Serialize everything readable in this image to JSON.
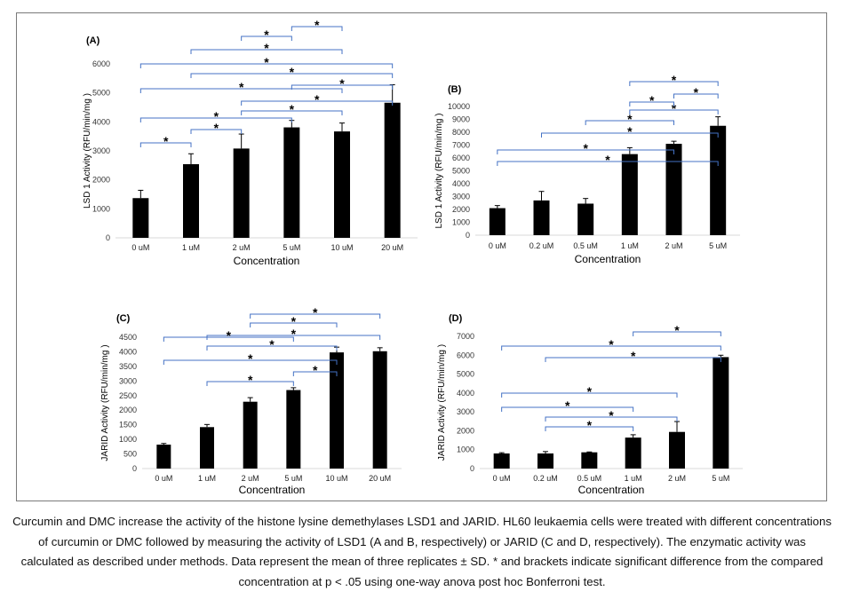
{
  "chart_data": [
    {
      "type": "bar",
      "panel": "(A)",
      "categories": [
        "0 uM",
        "1 uM",
        "2 uM",
        "5 uM",
        "10 uM",
        "20 uM"
      ],
      "values": [
        1370,
        2540,
        3080,
        3810,
        3670,
        4660
      ],
      "errors": [
        270,
        360,
        500,
        240,
        290,
        620
      ],
      "xlabel": "Concentration",
      "ylabel": "LSD 1 Activity (RFU/min/mg )",
      "ylim": [
        0,
        6000
      ],
      "yticks": [
        0,
        1000,
        2000,
        3000,
        4000,
        5000,
        6000
      ],
      "significance": [
        {
          "from": "0 uM",
          "to": "1 uM",
          "mark": "*"
        },
        {
          "from": "1 uM",
          "to": "2 uM",
          "mark": "*"
        },
        {
          "from": "0 uM",
          "to": "5 uM",
          "mark": "*"
        },
        {
          "from": "2 uM",
          "to": "10 uM",
          "mark": "*"
        },
        {
          "from": "2 uM",
          "to": "20 uM",
          "mark": "*"
        },
        {
          "from": "0 uM",
          "to": "10 uM",
          "mark": "*"
        },
        {
          "from": "1 uM",
          "to": "20 uM",
          "mark": "*"
        },
        {
          "from": "0 uM",
          "to": "20 uM",
          "mark": "*"
        },
        {
          "from": "1 uM",
          "to": "10 uM",
          "mark": "*"
        },
        {
          "from": "2 uM",
          "to": "5 uM",
          "mark": "*"
        },
        {
          "from": "5 uM",
          "to": "20 uM",
          "mark": "*"
        },
        {
          "from": "5 uM",
          "to": "10 uM",
          "mark": "*"
        }
      ]
    },
    {
      "type": "bar",
      "panel": "(B)",
      "categories": [
        "0 uM",
        "0.2 uM",
        "0.5 uM",
        "1 uM",
        "2 uM",
        "5 uM"
      ],
      "values": [
        2100,
        2700,
        2450,
        6300,
        7100,
        8500
      ],
      "errors": [
        200,
        700,
        400,
        500,
        200,
        700
      ],
      "xlabel": "Concentration",
      "ylabel": "LSD 1 Activity (RFU/min/mg )",
      "ylim": [
        0,
        10000
      ],
      "yticks": [
        0,
        1000,
        2000,
        3000,
        4000,
        5000,
        6000,
        7000,
        8000,
        9000,
        10000
      ],
      "significance": [
        {
          "from": "0 uM",
          "to": "5 uM",
          "mark": "*"
        },
        {
          "from": "0 uM",
          "to": "2 uM",
          "mark": "*"
        },
        {
          "from": "0.2 uM",
          "to": "5 uM",
          "mark": "*"
        },
        {
          "from": "0.5 uM",
          "to": "2 uM",
          "mark": "*"
        },
        {
          "from": "1 uM",
          "to": "5 uM",
          "mark": "*"
        },
        {
          "from": "1 uM",
          "to": "2 uM",
          "mark": "*"
        },
        {
          "from": "2 uM",
          "to": "5 uM",
          "mark": "*"
        },
        {
          "from": "1 uM",
          "to": "5 uM",
          "mark": "*"
        }
      ]
    },
    {
      "type": "bar",
      "panel": "(C)",
      "categories": [
        "0 uM",
        "1 uM",
        "2 uM",
        "5 uM",
        "10 uM",
        "20 uM"
      ],
      "values": [
        820,
        1420,
        2290,
        2690,
        3980,
        4020
      ],
      "errors": [
        40,
        90,
        140,
        80,
        180,
        120
      ],
      "xlabel": "Concentration",
      "ylabel": "JARID Activity (RFU/min/mg )",
      "ylim": [
        0,
        4500
      ],
      "yticks": [
        0,
        500,
        1000,
        1500,
        2000,
        2500,
        3000,
        3500,
        4000,
        4500
      ],
      "significance": [
        {
          "from": "2 uM",
          "to": "20 uM",
          "mark": "*"
        },
        {
          "from": "2 uM",
          "to": "10 uM",
          "mark": "*"
        },
        {
          "from": "1 uM",
          "to": "20 uM",
          "mark": "*"
        },
        {
          "from": "1 uM",
          "to": "10 uM",
          "mark": "*"
        },
        {
          "from": "5 uM",
          "to": "10 uM",
          "mark": "*"
        },
        {
          "from": "0 uM",
          "to": "10 uM",
          "mark": "*"
        },
        {
          "from": "0 uM",
          "to": "5 uM",
          "mark": "*"
        },
        {
          "from": "1 uM",
          "to": "5 uM",
          "mark": "*"
        }
      ]
    },
    {
      "type": "bar",
      "panel": "(D)",
      "categories": [
        "0 uM",
        "0.2 uM",
        "0.5 uM",
        "1 uM",
        "2 uM",
        "5 uM"
      ],
      "values": [
        800,
        800,
        860,
        1640,
        1940,
        5900
      ],
      "errors": [
        40,
        100,
        20,
        150,
        550,
        100
      ],
      "xlabel": "Concentration",
      "ylabel": "JARID Activity (RFU/min/mg )",
      "ylim": [
        0,
        7000
      ],
      "yticks": [
        0,
        1000,
        2000,
        3000,
        4000,
        5000,
        6000,
        7000
      ],
      "significance": [
        {
          "from": "1 uM",
          "to": "5 uM",
          "mark": "*"
        },
        {
          "from": "0 uM",
          "to": "5 uM",
          "mark": "*"
        },
        {
          "from": "0.2 uM",
          "to": "5 uM",
          "mark": "*"
        },
        {
          "from": "0 uM",
          "to": "2 uM",
          "mark": "*"
        },
        {
          "from": "0 uM",
          "to": "1 uM",
          "mark": "*"
        },
        {
          "from": "0.2 uM",
          "to": "2 uM",
          "mark": "*"
        },
        {
          "from": "0.2 uM",
          "to": "1 uM",
          "mark": "*"
        }
      ]
    }
  ],
  "colors": {
    "bar": "#000000",
    "bracket": "#4472c4",
    "axis": "#d9d9d9",
    "frame": "#7a7a7a"
  },
  "caption": "Curcumin and DMC increase the activity of the histone lysine demethylases LSD1 and JARID. HL60 leukaemia cells were treated with different concentrations of curcumin or DMC followed by measuring the activity of LSD1 (A and B, respectively) or JARID (C and D, respectively). The enzymatic activity was calculated as described under methods. Data represent the mean of three replicates ± SD. * and brackets indicate significant difference from the compared concentration at p < .05 using one-way anova post hoc Bonferroni test."
}
